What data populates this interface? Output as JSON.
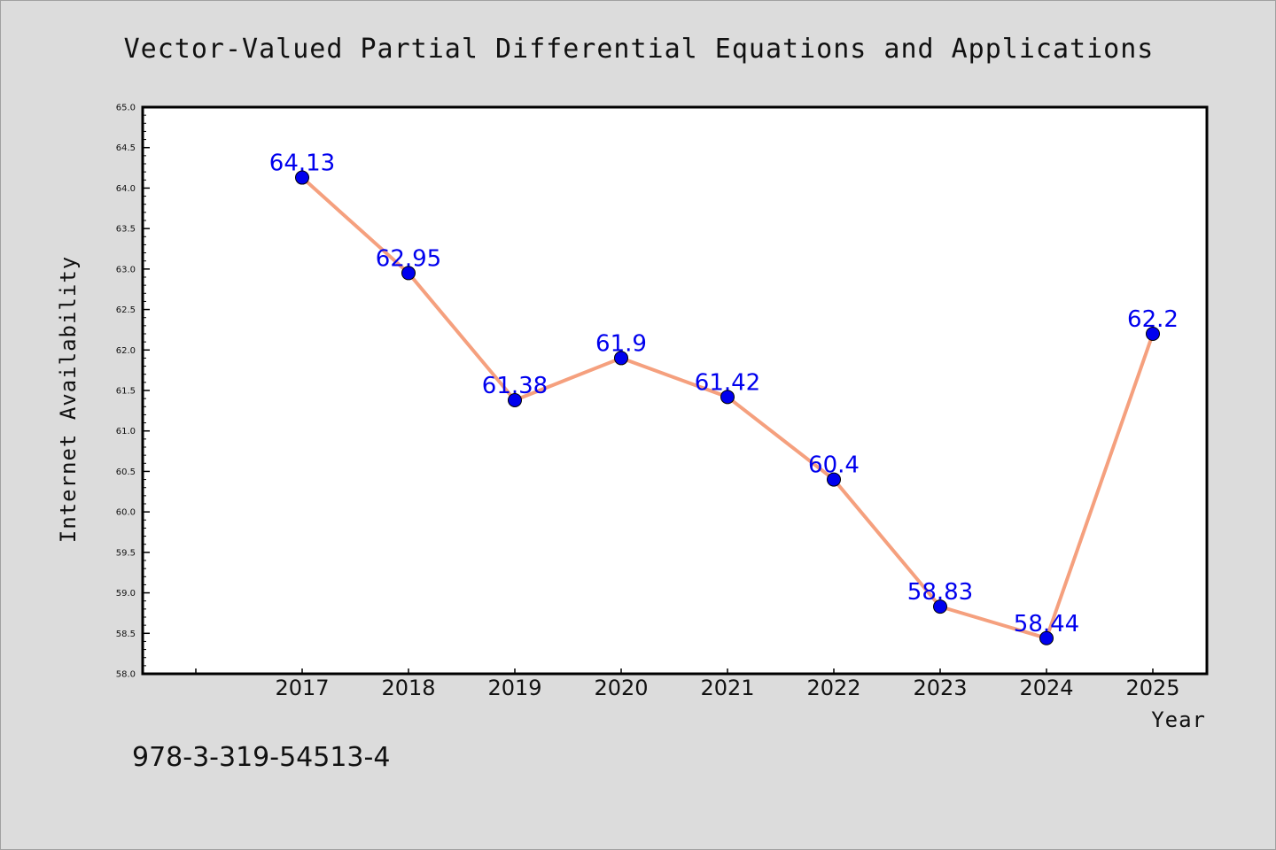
{
  "chart_data": {
    "type": "line",
    "title": "Vector-Valued Partial Differential Equations and Applications",
    "xlabel": "Year",
    "ylabel": "Internet Availability",
    "categories": [
      "2017",
      "2018",
      "2019",
      "2020",
      "2021",
      "2022",
      "2023",
      "2024",
      "2025"
    ],
    "values": [
      64.13,
      62.95,
      61.38,
      61.9,
      61.42,
      60.4,
      58.83,
      58.44,
      62.2
    ],
    "data_labels": [
      "64.13",
      "62.95",
      "61.38",
      "61.9",
      "61.42",
      "60.4",
      "58.83",
      "58.44",
      "62.2"
    ],
    "ylim": [
      58.0,
      65.0
    ],
    "yticks": [
      "58.0",
      "58.5",
      "59.0",
      "59.5",
      "60.0",
      "60.5",
      "61.0",
      "61.5",
      "62.0",
      "62.5",
      "63.0",
      "63.5",
      "64.0",
      "64.5",
      "65.0"
    ],
    "grid": false,
    "line_color": "#f5a07e",
    "marker_color": "#0000ee",
    "label_color": "#0000ee"
  },
  "footnote": "978-3-319-54513-4"
}
